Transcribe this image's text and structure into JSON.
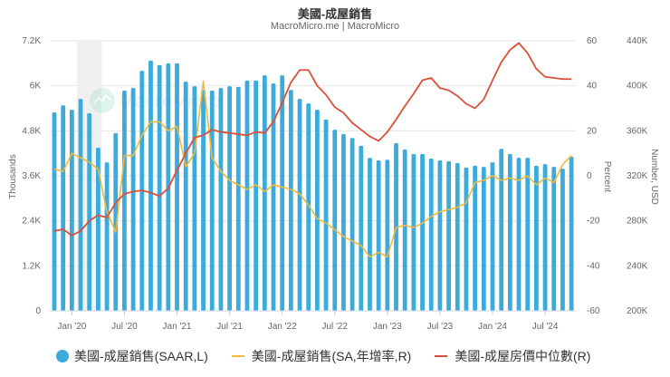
{
  "header": {
    "title": "美國-成屋銷售",
    "subtitle": "MacroMicro.me | MacroMicro"
  },
  "watermark": "MacroMicro",
  "axes": {
    "left": {
      "title": "Thousands",
      "ticks": [
        "7.2K",
        "6K",
        "4.8K",
        "3.6K",
        "2.4K",
        "1.2K",
        "0"
      ]
    },
    "right1": {
      "title": "Percent",
      "ticks": [
        "60",
        "40",
        "20",
        "0",
        "-20",
        "-40",
        "-60"
      ]
    },
    "right2": {
      "title": "Number, USD",
      "ticks": [
        "440K",
        "400K",
        "360K",
        "320K",
        "280K",
        "240K",
        "200K"
      ]
    },
    "x": {
      "ticks": [
        "Jan '20",
        "Jul '20",
        "Jan '21",
        "Jul '21",
        "Jan '22",
        "Jul '22",
        "Jan '23",
        "Jul '23",
        "Jan '24",
        "Jul '24"
      ]
    }
  },
  "legend": [
    {
      "label": "美國-成屋銷售(SAAR,L)",
      "color": "#3cabdb",
      "shape": "circle"
    },
    {
      "label": "美國-成屋銷售(SA,年增率,R)",
      "color": "#f0b93a",
      "shape": "line"
    },
    {
      "label": "美國-成屋房價中位數(R)",
      "color": "#d9503a",
      "shape": "line"
    }
  ],
  "colors": {
    "bars": "#3cabdb",
    "yoy": "#f0b93a",
    "price": "#d9503a",
    "grid": "#e6e6e6",
    "recession": "#ececec"
  },
  "chart_data": {
    "type": "bar",
    "title": "美國-成屋銷售",
    "subtitle": "MacroMicro.me | MacroMicro",
    "x": [
      "2019-11",
      "2019-12",
      "2020-01",
      "2020-02",
      "2020-03",
      "2020-04",
      "2020-05",
      "2020-06",
      "2020-07",
      "2020-08",
      "2020-09",
      "2020-10",
      "2020-11",
      "2020-12",
      "2021-01",
      "2021-02",
      "2021-03",
      "2021-04",
      "2021-05",
      "2021-06",
      "2021-07",
      "2021-08",
      "2021-09",
      "2021-10",
      "2021-11",
      "2021-12",
      "2022-01",
      "2022-02",
      "2022-03",
      "2022-04",
      "2022-05",
      "2022-06",
      "2022-07",
      "2022-08",
      "2022-09",
      "2022-10",
      "2022-11",
      "2022-12",
      "2023-01",
      "2023-02",
      "2023-03",
      "2023-04",
      "2023-05",
      "2023-06",
      "2023-07",
      "2023-08",
      "2023-09",
      "2023-10",
      "2023-11",
      "2023-12",
      "2024-01",
      "2024-02",
      "2024-03",
      "2024-04",
      "2024-05",
      "2024-06",
      "2024-07",
      "2024-08",
      "2024-09",
      "2024-10"
    ],
    "series": [
      {
        "name": "美國-成屋銷售(SAAR,L)",
        "type": "bar",
        "axis": "left",
        "unit": "Thousands",
        "values": [
          5290,
          5480,
          5360,
          5650,
          5270,
          4350,
          3960,
          4740,
          5870,
          5940,
          6400,
          6670,
          6550,
          6600,
          6600,
          6110,
          5990,
          5890,
          5870,
          5940,
          5990,
          5970,
          6140,
          6140,
          6280,
          6060,
          6280,
          5890,
          5650,
          5530,
          5360,
          5100,
          4830,
          4710,
          4610,
          4400,
          4080,
          4010,
          4030,
          4470,
          4300,
          4180,
          4180,
          4060,
          4010,
          3990,
          3940,
          3820,
          3870,
          3840,
          3960,
          4320,
          4180,
          4080,
          4080,
          3870,
          3910,
          3840,
          3790,
          4110
        ]
      },
      {
        "name": "美國-成屋銷售(SA,年增率,R)",
        "type": "line",
        "axis": "right_percent",
        "unit": "Percent",
        "values": [
          3,
          2,
          10,
          8,
          6,
          3,
          -16,
          -25,
          9,
          9,
          18,
          24,
          24,
          20,
          22,
          4,
          10,
          42,
          8,
          2,
          -2,
          -4,
          -6,
          -4,
          -7,
          -4,
          -5,
          -6,
          -8,
          -13,
          -19,
          -21,
          -24,
          -27,
          -29,
          -31,
          -36,
          -34,
          -36,
          -23,
          -22,
          -23,
          -21,
          -18,
          -16,
          -15,
          -14,
          -12,
          -3,
          -2,
          0,
          -2,
          -1,
          -2,
          0,
          -4,
          -1,
          -3,
          5,
          9
        ]
      },
      {
        "name": "美國-成屋房價中位數(R)",
        "type": "line",
        "axis": "right_usd",
        "unit": "USD",
        "values": [
          271000,
          272500,
          267000,
          271000,
          280000,
          285000,
          283000,
          296000,
          304000,
          306000,
          307000,
          305000,
          302000,
          309000,
          325000,
          340000,
          354000,
          356000,
          361000,
          359000,
          358000,
          357000,
          356000,
          359000,
          358000,
          368000,
          385000,
          403000,
          414000,
          414000,
          400000,
          392000,
          381000,
          376000,
          367000,
          361000,
          355000,
          351000,
          359000,
          370000,
          382000,
          393000,
          405000,
          407000,
          398000,
          396000,
          391000,
          384000,
          380000,
          388000,
          405000,
          421000,
          432000,
          438000,
          429000,
          415000,
          408000,
          407000,
          406000,
          406000
        ]
      }
    ],
    "axes": {
      "left": {
        "label": "Thousands",
        "range": [
          0,
          7200
        ]
      },
      "right_percent": {
        "label": "Percent",
        "range": [
          -60,
          60
        ]
      },
      "right_usd": {
        "label": "Number, USD",
        "range": [
          200000,
          440000
        ]
      }
    },
    "shaded_region": {
      "from": "2020-02",
      "to": "2020-04",
      "meaning": "recession"
    },
    "grid": true,
    "legend_position": "bottom"
  }
}
